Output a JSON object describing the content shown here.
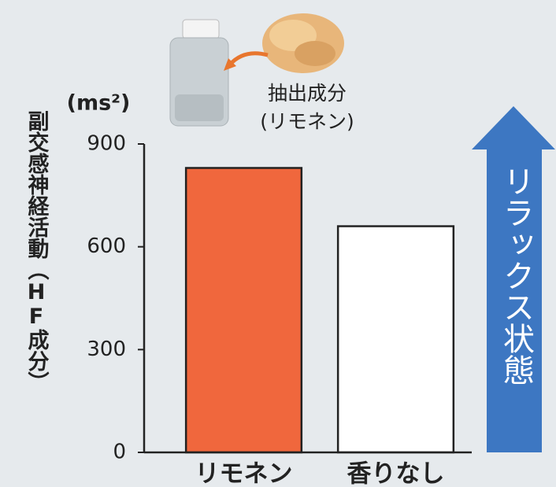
{
  "chart_data": {
    "type": "bar",
    "unit_label": "(ms²)",
    "y_label": "副交感神経活動（HF成分）",
    "annotations": [
      "抽出成分",
      "(リモネン)"
    ],
    "arrow_label": "リラックス状態",
    "categories": [
      "リモネン",
      "香りなし"
    ],
    "values": [
      830,
      660
    ],
    "colors": [
      "#f0673d",
      "#ffffff"
    ],
    "ylim": [
      0,
      900
    ],
    "yticks": [
      0,
      300,
      600,
      900
    ],
    "grid": false
  }
}
